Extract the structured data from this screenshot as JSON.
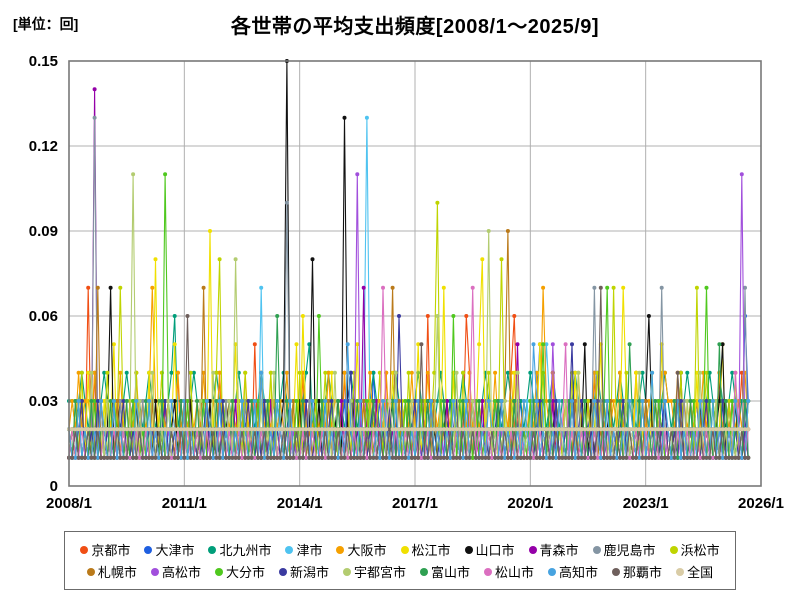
{
  "unit_label": "[単位：回]",
  "title": "各世帯の平均支出頻度[2008/1～2025/9]",
  "chart_data": {
    "type": "line",
    "title": "各世帯の平均支出頻度[2008/1～2025/9]",
    "ylabel": "[単位：回]",
    "x_tick_labels": [
      "2008/1",
      "2011/1",
      "2014/1",
      "2017/1",
      "2020/1",
      "2023/1",
      "2026/1"
    ],
    "x_tick_month_index": [
      0,
      36,
      72,
      108,
      144,
      180,
      216
    ],
    "x_total_months": 216,
    "n_points": 213,
    "period_start": "2008/1",
    "period_end": "2025/9",
    "y_tick_labels": [
      "0",
      "0.03",
      "0.06",
      "0.09",
      "0.12",
      "0.15"
    ],
    "y_ticks": [
      0,
      0.03,
      0.06,
      0.09,
      0.12,
      0.15
    ],
    "ylim": [
      0,
      0.15
    ],
    "grid": true,
    "legend_position": "bottom",
    "legend_rows": [
      10,
      10
    ],
    "value_scale": 0.01,
    "colors": {
      "frame": "#787878",
      "gridline": "#b0b0b0"
    },
    "series": [
      {
        "name": "京都市",
        "color": "#F04E14",
        "base": [
          1,
          2,
          1,
          1,
          3,
          1,
          2,
          1,
          4,
          1,
          2,
          2,
          1
        ],
        "spikes": [
          [
            6,
            7
          ],
          [
            58,
            5
          ],
          [
            112,
            6
          ],
          [
            124,
            6
          ],
          [
            139,
            6
          ],
          [
            210,
            4
          ]
        ]
      },
      {
        "name": "大津市",
        "color": "#1F5FE0",
        "base": [
          2,
          1,
          1,
          3,
          1,
          2,
          1,
          1,
          2,
          3,
          1
        ],
        "spikes": [
          [
            95,
            4
          ],
          [
            147,
            5
          ],
          [
            211,
            6
          ]
        ]
      },
      {
        "name": "北九州市",
        "color": "#009E7A",
        "base": [
          3,
          3,
          2,
          3,
          4,
          3,
          2
        ],
        "spikes": [
          [
            33,
            6
          ],
          [
            75,
            5
          ],
          [
            203,
            4
          ]
        ]
      },
      {
        "name": "津市",
        "color": "#4FC3F0",
        "base": [
          2,
          1,
          3,
          1,
          1,
          2,
          1,
          3,
          1,
          2,
          1,
          1,
          2,
          1,
          3,
          1,
          2
        ],
        "spikes": [
          [
            60,
            7
          ],
          [
            93,
            13
          ],
          [
            149,
            5
          ]
        ]
      },
      {
        "name": "大阪市",
        "color": "#F5A000",
        "base": [
          2,
          3,
          2,
          4,
          2,
          3,
          3,
          2,
          4,
          2,
          3,
          2,
          3
        ],
        "spikes": [
          [
            26,
            7
          ],
          [
            148,
            7
          ],
          [
            186,
            4
          ]
        ]
      },
      {
        "name": "松江市",
        "color": "#F0E000",
        "base": [
          1,
          2,
          1,
          3,
          1,
          1,
          4,
          1,
          2,
          1,
          1,
          3,
          1,
          2,
          5,
          1,
          1,
          2,
          1
        ],
        "spikes": [
          [
            27,
            8
          ],
          [
            44,
            9
          ],
          [
            73,
            6
          ],
          [
            117,
            7
          ],
          [
            129,
            8
          ],
          [
            173,
            7
          ]
        ]
      },
      {
        "name": "山口市",
        "color": "#111111",
        "base": [
          1,
          1,
          2,
          1,
          3,
          1,
          1,
          2,
          1,
          1,
          3,
          1,
          2,
          1,
          1,
          2,
          3
        ],
        "spikes": [
          [
            13,
            7
          ],
          [
            68,
            15
          ],
          [
            76,
            8
          ],
          [
            86,
            13
          ],
          [
            161,
            5
          ],
          [
            181,
            6
          ],
          [
            191,
            4
          ],
          [
            204,
            5
          ]
        ]
      },
      {
        "name": "青森市",
        "color": "#9400A8",
        "base": [
          1,
          1,
          2,
          1,
          1,
          1,
          2,
          1,
          3,
          1,
          1
        ],
        "spikes": [
          [
            8,
            14
          ],
          [
            92,
            7
          ],
          [
            140,
            5
          ]
        ]
      },
      {
        "name": "鹿児島市",
        "color": "#8495A3",
        "base": [
          2,
          1,
          1,
          3,
          1,
          2,
          1,
          1,
          2,
          1,
          3,
          1,
          1
        ],
        "spikes": [
          [
            8,
            13
          ],
          [
            68,
            10
          ],
          [
            164,
            7
          ],
          [
            185,
            7
          ],
          [
            211,
            7
          ]
        ]
      },
      {
        "name": "浜松市",
        "color": "#BFD400",
        "base": [
          2,
          1,
          3,
          1,
          4,
          1,
          2,
          1,
          1,
          3,
          1,
          2,
          4,
          1,
          1,
          2,
          1
        ],
        "spikes": [
          [
            16,
            7
          ],
          [
            47,
            8
          ],
          [
            115,
            10
          ],
          [
            135,
            8
          ],
          [
            170,
            7
          ],
          [
            196,
            7
          ]
        ]
      },
      {
        "name": "札幌市",
        "color": "#BA7A1A",
        "base": [
          1,
          2,
          1,
          1,
          3,
          1,
          1,
          2,
          1,
          2,
          1
        ],
        "spikes": [
          [
            9,
            7
          ],
          [
            42,
            7
          ],
          [
            101,
            7
          ],
          [
            137,
            9
          ]
        ]
      },
      {
        "name": "高松市",
        "color": "#A14FDC",
        "base": [
          1,
          1,
          2,
          1,
          1,
          2,
          1,
          1,
          1,
          2,
          1,
          1,
          2
        ],
        "spikes": [
          [
            90,
            11
          ],
          [
            151,
            5
          ],
          [
            210,
            11
          ]
        ]
      },
      {
        "name": "大分市",
        "color": "#4FC81E",
        "base": [
          1,
          2,
          1,
          3,
          1,
          1,
          2,
          1,
          3,
          1,
          1,
          2,
          1,
          1,
          3,
          2,
          1
        ],
        "spikes": [
          [
            30,
            11
          ],
          [
            78,
            6
          ],
          [
            120,
            6
          ],
          [
            148,
            5
          ],
          [
            168,
            7
          ],
          [
            199,
            7
          ]
        ]
      },
      {
        "name": "新潟市",
        "color": "#3A3AA0",
        "base": [
          2,
          1,
          1,
          2,
          3,
          1,
          1,
          2,
          1,
          3,
          1,
          1,
          2
        ],
        "spikes": [
          [
            88,
            4
          ],
          [
            103,
            6
          ],
          [
            157,
            5
          ]
        ]
      },
      {
        "name": "宇都宮市",
        "color": "#B3CC70",
        "base": [
          2,
          1,
          1,
          3,
          1,
          2,
          1,
          4,
          1,
          1,
          2,
          1,
          3,
          1,
          1,
          2,
          1,
          2,
          1
        ],
        "spikes": [
          [
            20,
            11
          ],
          [
            52,
            8
          ],
          [
            115,
            6
          ],
          [
            131,
            9
          ]
        ]
      },
      {
        "name": "富山市",
        "color": "#2FA052",
        "base": [
          2,
          1,
          3,
          1,
          1,
          2,
          1,
          3,
          1,
          1,
          2
        ],
        "spikes": [
          [
            65,
            6
          ],
          [
            175,
            5
          ],
          [
            203,
            5
          ]
        ]
      },
      {
        "name": "松山市",
        "color": "#DB6FC0",
        "base": [
          1,
          2,
          1,
          1,
          2,
          1,
          1,
          1,
          2,
          1,
          1,
          2,
          1
        ],
        "spikes": [
          [
            98,
            7
          ],
          [
            126,
            7
          ],
          [
            155,
            5
          ],
          [
            208,
            4
          ]
        ]
      },
      {
        "name": "高知市",
        "color": "#47A3E0",
        "base": [
          2,
          1,
          1,
          3,
          1,
          2,
          1,
          1,
          2,
          1,
          3
        ],
        "spikes": [
          [
            60,
            4
          ],
          [
            87,
            5
          ],
          [
            145,
            5
          ],
          [
            182,
            4
          ]
        ]
      },
      {
        "name": "那覇市",
        "color": "#6E5F5C",
        "base": [
          1,
          1,
          2,
          1,
          1,
          1,
          2,
          1,
          1,
          2,
          1,
          1,
          1
        ],
        "spikes": [
          [
            37,
            6
          ],
          [
            110,
            5
          ],
          [
            166,
            7
          ],
          [
            190,
            4
          ]
        ]
      },
      {
        "name": "全国",
        "color": "#D9CCA6",
        "base": [
          2,
          2,
          2,
          2,
          2,
          2,
          2
        ],
        "spikes": [
          [
            100,
            3
          ]
        ]
      }
    ]
  }
}
